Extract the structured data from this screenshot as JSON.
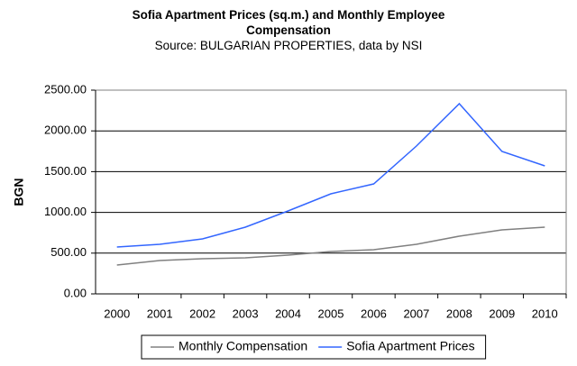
{
  "chart_data": {
    "type": "line",
    "title": "Sofia Apartment Prices (sq.m.) and Monthly Employee Compensation",
    "subtitle": "Source: BULGARIAN PROPERTIES, data by NSI",
    "y_label": "BGN",
    "categories": [
      "2000",
      "2001",
      "2002",
      "2003",
      "2004",
      "2005",
      "2006",
      "2007",
      "2008",
      "2009",
      "2010"
    ],
    "series": [
      {
        "name": "Monthly Compensation",
        "color": "#808080",
        "values": [
          354,
          409,
          431,
          442,
          476,
          520,
          542,
          608,
          708,
          785,
          819
        ]
      },
      {
        "name": "Sofia Apartment Prices",
        "color": "#3366ff",
        "values": [
          575,
          608,
          675,
          819,
          1018,
          1228,
          1350,
          1814,
          2334,
          1748,
          1571
        ]
      }
    ],
    "ylim": [
      0,
      2500
    ],
    "yticks": [
      {
        "value": 0,
        "label": "0.00"
      },
      {
        "value": 500,
        "label": "500.00"
      },
      {
        "value": 1000,
        "label": "1000.00"
      },
      {
        "value": 1500,
        "label": "1500.00"
      },
      {
        "value": 2000,
        "label": "2000.00"
      },
      {
        "value": 2500,
        "label": "2500.00"
      }
    ],
    "grid": true,
    "legend": "bottom"
  }
}
